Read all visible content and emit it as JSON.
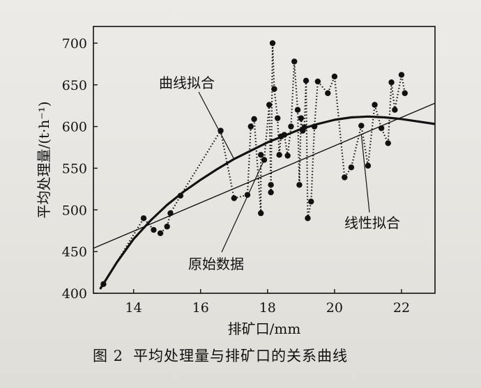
{
  "chart_data": {
    "type": "line",
    "caption": {
      "label": "图 2",
      "text": "平均处理量与排矿口的关系曲线"
    },
    "xlabel": "排矿口/mm",
    "ylabel": "平均处理量/(t·h⁻¹)",
    "xlim": [
      12.8,
      23.0
    ],
    "ylim": [
      400,
      720
    ],
    "xticks": [
      14,
      16,
      18,
      20,
      22
    ],
    "yticks": [
      400,
      450,
      500,
      550,
      600,
      650,
      700
    ],
    "grid": false,
    "series": [
      {
        "name": "原始数据",
        "style": "dotted-with-markers",
        "x": [
          13.1,
          14.3,
          14.6,
          14.8,
          15.0,
          15.1,
          15.4,
          16.6,
          17.0,
          17.4,
          17.5,
          17.6,
          17.8,
          17.8,
          17.9,
          18.05,
          18.1,
          18.1,
          18.15,
          18.2,
          18.3,
          18.35,
          18.4,
          18.5,
          18.6,
          18.7,
          18.8,
          18.9,
          18.95,
          19.0,
          19.05,
          19.1,
          19.15,
          19.2,
          19.3,
          19.4,
          19.5,
          19.8,
          20.0,
          20.3,
          20.5,
          20.8,
          21.0,
          21.2,
          21.4,
          21.6,
          21.7,
          21.8,
          22.0,
          22.1
        ],
        "values": [
          411,
          490,
          476,
          472,
          480,
          496,
          517,
          595,
          514,
          518,
          600,
          609,
          496,
          566,
          560,
          626,
          530,
          521,
          700,
          645,
          610,
          566,
          588,
          590,
          565,
          600,
          678,
          620,
          530,
          610,
          595,
          599,
          655,
          490,
          510,
          600,
          654,
          640,
          660,
          539,
          551,
          601,
          553,
          626,
          598,
          580,
          653,
          620,
          662,
          640
        ]
      },
      {
        "name": "曲线拟合",
        "style": "thick-solid",
        "x": [
          13.0,
          13.5,
          14.0,
          14.5,
          15.0,
          15.5,
          16.0,
          16.5,
          17.0,
          17.5,
          18.0,
          18.5,
          19.0,
          19.5,
          20.0,
          20.5,
          21.0,
          21.5,
          22.0,
          22.5,
          23.0
        ],
        "values": [
          405,
          437,
          465,
          487,
          506,
          522,
          536,
          549,
          561,
          571,
          581,
          589,
          597,
          603,
          608,
          611,
          612,
          611,
          609,
          606,
          603
        ]
      },
      {
        "name": "线性拟合",
        "style": "thin-solid",
        "x": [
          12.8,
          23.0
        ],
        "values": [
          454,
          628
        ]
      }
    ],
    "annotations": [
      {
        "text": "曲线拟合",
        "points_to": "曲线拟合"
      },
      {
        "text": "线性拟合",
        "points_to": "线性拟合"
      },
      {
        "text": "原始数据",
        "points_to": "原始数据"
      }
    ]
  }
}
